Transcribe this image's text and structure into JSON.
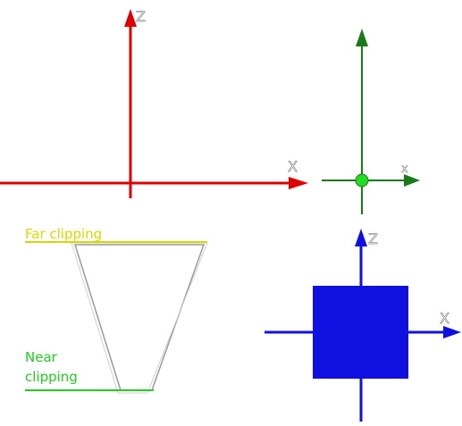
{
  "colors": {
    "red": "#e00000",
    "green": "#1a7a1a",
    "green_dot": "#22dd22",
    "blue": "#1010e0",
    "yellow": "#d8d800",
    "clip_green": "#22cc22",
    "gray": "#9a9a9a"
  },
  "axes_red": {
    "z_label": "Z",
    "x_label": "X"
  },
  "axes_green": {
    "x_label": "x"
  },
  "frustum": {
    "far_label": "Far clipping",
    "near_label_line1": "Near",
    "near_label_line2": "clipping"
  },
  "axes_blue": {
    "z_label": "Z",
    "x_label": "X"
  }
}
